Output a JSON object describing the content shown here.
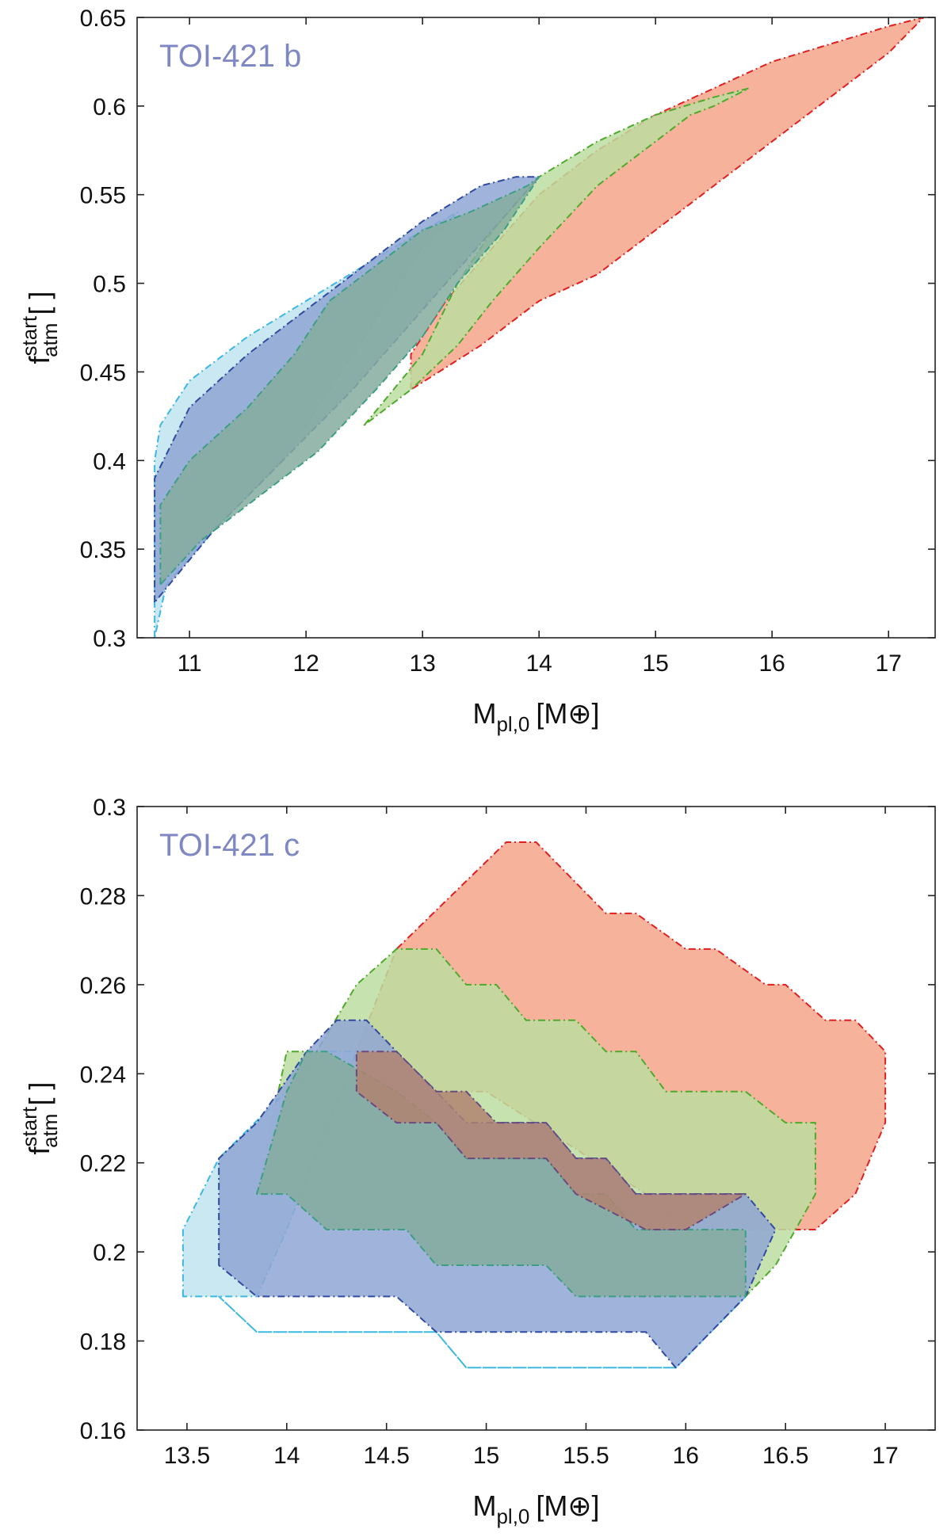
{
  "chart_data": [
    {
      "type": "area",
      "annotation": "TOI-421 b",
      "xlabel": "M",
      "xlabel_sub": "pl,0",
      "xlabel_unit": "[M⊕]",
      "ylabel": "f",
      "ylabel_sup": "start",
      "ylabel_sub": "atm",
      "ylabel_unit": "[ ]",
      "xlim": [
        10.55,
        17.4
      ],
      "ylim": [
        0.3,
        0.65
      ],
      "xticks": [
        11,
        12,
        13,
        14,
        15,
        16,
        17
      ],
      "yticks": [
        0.3,
        0.35,
        0.4,
        0.45,
        0.5,
        0.55,
        0.6,
        0.65
      ],
      "x_tick_labels": [
        "11",
        "12",
        "13",
        "14",
        "15",
        "16",
        "17"
      ],
      "y_tick_labels": [
        "0.3",
        "0.35",
        "0.4",
        "0.45",
        "0.5",
        "0.55",
        "0.6",
        "0.65"
      ],
      "grid": false,
      "series": [
        {
          "fill": "#f4a58a",
          "stroke": "#e02020",
          "points": [
            [
              12.9,
              0.44
            ],
            [
              12.9,
              0.46
            ],
            [
              13.2,
              0.49
            ],
            [
              13.6,
              0.52
            ],
            [
              14.0,
              0.55
            ],
            [
              14.5,
              0.575
            ],
            [
              15.0,
              0.595
            ],
            [
              15.5,
              0.61
            ],
            [
              16.0,
              0.625
            ],
            [
              16.5,
              0.635
            ],
            [
              17.0,
              0.645
            ],
            [
              17.3,
              0.65
            ],
            [
              17.0,
              0.63
            ],
            [
              16.5,
              0.605
            ],
            [
              16.0,
              0.58
            ],
            [
              15.5,
              0.555
            ],
            [
              15.0,
              0.53
            ],
            [
              14.5,
              0.505
            ],
            [
              14.0,
              0.49
            ],
            [
              13.5,
              0.465
            ],
            [
              12.9,
              0.44
            ]
          ]
        },
        {
          "fill": "#bcdda0",
          "stroke": "#4eaa2c",
          "points": [
            [
              12.5,
              0.42
            ],
            [
              13.0,
              0.46
            ],
            [
              13.3,
              0.5
            ],
            [
              13.6,
              0.53
            ],
            [
              14.0,
              0.56
            ],
            [
              14.5,
              0.58
            ],
            [
              15.0,
              0.595
            ],
            [
              15.5,
              0.605
            ],
            [
              15.8,
              0.61
            ],
            [
              15.5,
              0.6
            ],
            [
              15.3,
              0.595
            ],
            [
              15.0,
              0.58
            ],
            [
              14.5,
              0.555
            ],
            [
              14.0,
              0.52
            ],
            [
              13.6,
              0.49
            ],
            [
              13.3,
              0.465
            ],
            [
              12.9,
              0.44
            ],
            [
              12.5,
              0.42
            ]
          ]
        },
        {
          "fill": "#bfe4ee",
          "stroke": "#3db8e0",
          "points": [
            [
              10.7,
              0.3
            ],
            [
              10.7,
              0.4
            ],
            [
              10.75,
              0.42
            ],
            [
              11.0,
              0.445
            ],
            [
              11.5,
              0.47
            ],
            [
              12.0,
              0.49
            ],
            [
              12.5,
              0.51
            ],
            [
              13.0,
              0.53
            ],
            [
              13.3,
              0.54
            ],
            [
              13.0,
              0.52
            ],
            [
              12.6,
              0.48
            ],
            [
              12.2,
              0.44
            ],
            [
              11.8,
              0.4
            ],
            [
              11.2,
              0.36
            ],
            [
              10.8,
              0.33
            ],
            [
              10.7,
              0.3
            ]
          ]
        },
        {
          "fill": "#8fa6d3",
          "stroke": "#2f4aa0",
          "points": [
            [
              10.7,
              0.32
            ],
            [
              10.7,
              0.39
            ],
            [
              10.85,
              0.41
            ],
            [
              11.0,
              0.43
            ],
            [
              11.5,
              0.46
            ],
            [
              12.0,
              0.485
            ],
            [
              12.5,
              0.51
            ],
            [
              13.0,
              0.535
            ],
            [
              13.5,
              0.555
            ],
            [
              13.8,
              0.56
            ],
            [
              14.0,
              0.56
            ],
            [
              13.6,
              0.53
            ],
            [
              13.2,
              0.5
            ],
            [
              12.8,
              0.47
            ],
            [
              12.4,
              0.44
            ],
            [
              11.8,
              0.4
            ],
            [
              11.2,
              0.36
            ],
            [
              10.7,
              0.32
            ]
          ]
        },
        {
          "fill": "#85ad9f",
          "stroke": "#3d9e86",
          "points": [
            [
              10.75,
              0.33
            ],
            [
              10.75,
              0.375
            ],
            [
              11.0,
              0.4
            ],
            [
              11.5,
              0.43
            ],
            [
              11.9,
              0.46
            ],
            [
              12.2,
              0.49
            ],
            [
              12.6,
              0.51
            ],
            [
              13.0,
              0.53
            ],
            [
              13.4,
              0.54
            ],
            [
              13.9,
              0.555
            ],
            [
              14.0,
              0.56
            ],
            [
              13.7,
              0.53
            ],
            [
              13.3,
              0.5
            ],
            [
              13.0,
              0.47
            ],
            [
              12.6,
              0.44
            ],
            [
              12.1,
              0.405
            ],
            [
              11.6,
              0.38
            ],
            [
              11.1,
              0.355
            ],
            [
              10.75,
              0.33
            ]
          ]
        }
      ]
    },
    {
      "type": "area",
      "annotation": "TOI-421 c",
      "xlabel": "M",
      "xlabel_sub": "pl,0",
      "xlabel_unit": "[M⊕]",
      "ylabel": "f",
      "ylabel_sup": "start",
      "ylabel_sub": "atm",
      "ylabel_unit": "[ ]",
      "xlim": [
        13.25,
        17.25
      ],
      "ylim": [
        0.16,
        0.3
      ],
      "xticks": [
        13.5,
        14,
        14.5,
        15,
        15.5,
        16,
        16.5,
        17
      ],
      "yticks": [
        0.16,
        0.18,
        0.2,
        0.22,
        0.24,
        0.26,
        0.28,
        0.3
      ],
      "x_tick_labels": [
        "13.5",
        "14",
        "14.5",
        "15",
        "15.5",
        "16",
        "16.5",
        "17"
      ],
      "y_tick_labels": [
        "0.16",
        "0.18",
        "0.2",
        "0.22",
        "0.24",
        "0.26",
        "0.28",
        "0.3"
      ],
      "grid": false,
      "series": [
        {
          "fill": "#f4a58a",
          "stroke": "#e02020",
          "points": [
            [
              14.35,
              0.236
            ],
            [
              14.35,
              0.245
            ],
            [
              14.55,
              0.268
            ],
            [
              15.1,
              0.292
            ],
            [
              15.25,
              0.292
            ],
            [
              15.6,
              0.276
            ],
            [
              15.75,
              0.276
            ],
            [
              16.0,
              0.268
            ],
            [
              16.15,
              0.268
            ],
            [
              16.4,
              0.26
            ],
            [
              16.5,
              0.26
            ],
            [
              16.7,
              0.252
            ],
            [
              16.85,
              0.252
            ],
            [
              17.0,
              0.245
            ],
            [
              17.0,
              0.229
            ],
            [
              16.85,
              0.213
            ],
            [
              16.65,
              0.205
            ],
            [
              16.0,
              0.205
            ],
            [
              15.8,
              0.213
            ],
            [
              15.0,
              0.236
            ],
            [
              14.35,
              0.236
            ]
          ]
        },
        {
          "fill": "#bcdda0",
          "stroke": "#4eaa2c",
          "points": [
            [
              13.85,
              0.213
            ],
            [
              14.0,
              0.245
            ],
            [
              14.15,
              0.245
            ],
            [
              14.35,
              0.26
            ],
            [
              14.55,
              0.268
            ],
            [
              14.75,
              0.268
            ],
            [
              14.9,
              0.26
            ],
            [
              15.05,
              0.26
            ],
            [
              15.2,
              0.252
            ],
            [
              15.45,
              0.252
            ],
            [
              15.6,
              0.245
            ],
            [
              15.75,
              0.245
            ],
            [
              15.9,
              0.236
            ],
            [
              16.3,
              0.236
            ],
            [
              16.5,
              0.229
            ],
            [
              16.65,
              0.229
            ],
            [
              16.65,
              0.213
            ],
            [
              16.45,
              0.197
            ],
            [
              16.3,
              0.19
            ],
            [
              15.45,
              0.19
            ],
            [
              15.3,
              0.197
            ],
            [
              14.75,
              0.197
            ],
            [
              14.6,
              0.205
            ],
            [
              14.2,
              0.205
            ],
            [
              14.0,
              0.213
            ],
            [
              13.85,
              0.213
            ]
          ]
        },
        {
          "fill": "#bfe4ee",
          "stroke": "#3db8e0",
          "points": [
            [
              13.48,
              0.19
            ],
            [
              13.48,
              0.205
            ],
            [
              13.66,
              0.221
            ],
            [
              14.2,
              0.245
            ],
            [
              14.35,
              0.245
            ],
            [
              14.0,
              0.205
            ],
            [
              13.85,
              0.19
            ],
            [
              13.66,
              0.19
            ],
            [
              13.48,
              0.19
            ]
          ]
        },
        {
          "fill": "#bfe4ee",
          "stroke": "#3db8e0",
          "points": [
            [
              13.66,
              0.19
            ],
            [
              13.85,
              0.182
            ],
            [
              14.75,
              0.182
            ],
            [
              14.9,
              0.174
            ],
            [
              15.95,
              0.174
            ],
            [
              16.3,
              0.19
            ],
            [
              15.95,
              0.174
            ],
            [
              14.9,
              0.174
            ],
            [
              14.75,
              0.182
            ],
            [
              13.85,
              0.182
            ],
            [
              13.66,
              0.19
            ]
          ]
        },
        {
          "fill": "#8fa6d3",
          "stroke": "#2f4aa0",
          "points": [
            [
              13.66,
              0.197
            ],
            [
              13.66,
              0.221
            ],
            [
              13.85,
              0.229
            ],
            [
              14.1,
              0.245
            ],
            [
              14.25,
              0.252
            ],
            [
              14.4,
              0.252
            ],
            [
              14.55,
              0.245
            ],
            [
              14.75,
              0.236
            ],
            [
              14.9,
              0.229
            ],
            [
              15.3,
              0.229
            ],
            [
              15.45,
              0.221
            ],
            [
              15.6,
              0.221
            ],
            [
              15.75,
              0.213
            ],
            [
              16.3,
              0.213
            ],
            [
              16.45,
              0.205
            ],
            [
              16.3,
              0.19
            ],
            [
              15.95,
              0.174
            ],
            [
              15.8,
              0.182
            ],
            [
              14.75,
              0.182
            ],
            [
              14.55,
              0.19
            ],
            [
              13.85,
              0.19
            ],
            [
              13.66,
              0.197
            ]
          ]
        },
        {
          "fill": "#85ad9f",
          "stroke": "#3d9e86",
          "points": [
            [
              13.85,
              0.213
            ],
            [
              14.0,
              0.236
            ],
            [
              14.1,
              0.245
            ],
            [
              14.2,
              0.245
            ],
            [
              14.55,
              0.236
            ],
            [
              14.75,
              0.229
            ],
            [
              14.9,
              0.221
            ],
            [
              15.3,
              0.221
            ],
            [
              15.45,
              0.213
            ],
            [
              15.6,
              0.213
            ],
            [
              15.75,
              0.205
            ],
            [
              16.3,
              0.205
            ],
            [
              16.3,
              0.19
            ],
            [
              15.45,
              0.19
            ],
            [
              15.3,
              0.197
            ],
            [
              14.75,
              0.197
            ],
            [
              14.6,
              0.205
            ],
            [
              14.2,
              0.205
            ],
            [
              14.0,
              0.213
            ],
            [
              13.85,
              0.213
            ]
          ]
        },
        {
          "fill": "#b08270",
          "stroke": "#6a4a80",
          "points": [
            [
              14.35,
              0.236
            ],
            [
              14.35,
              0.245
            ],
            [
              14.55,
              0.245
            ],
            [
              14.75,
              0.236
            ],
            [
              14.9,
              0.236
            ],
            [
              15.05,
              0.229
            ],
            [
              15.3,
              0.229
            ],
            [
              15.45,
              0.221
            ],
            [
              15.6,
              0.221
            ],
            [
              15.75,
              0.213
            ],
            [
              16.3,
              0.213
            ],
            [
              16.0,
              0.205
            ],
            [
              15.8,
              0.205
            ],
            [
              15.45,
              0.213
            ],
            [
              15.3,
              0.221
            ],
            [
              14.9,
              0.221
            ],
            [
              14.75,
              0.229
            ],
            [
              14.55,
              0.229
            ],
            [
              14.35,
              0.236
            ]
          ]
        }
      ]
    }
  ]
}
